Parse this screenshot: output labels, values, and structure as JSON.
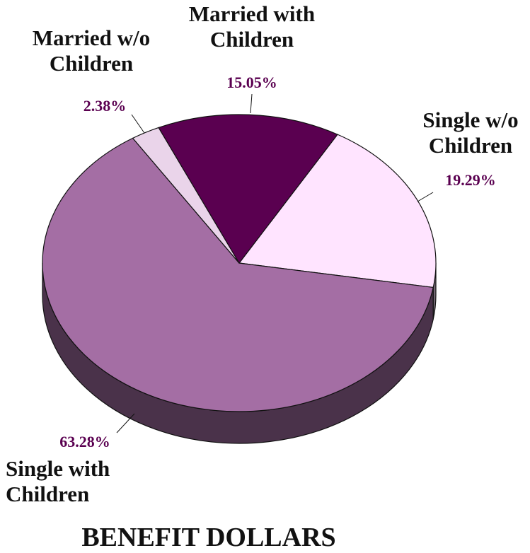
{
  "chart_data": {
    "type": "pie",
    "title": "BENEFIT DOLLARS",
    "categories": [
      "Single w/o Children",
      "Single with Children",
      "Married w/o Children",
      "Married with Children"
    ],
    "values": [
      19.29,
      63.28,
      2.38,
      15.05
    ],
    "value_labels": [
      "19.29%",
      "63.28%",
      "2.38%",
      "15.05%"
    ],
    "colors": [
      "#ffe4ff",
      "#a46ea4",
      "#ead4ea",
      "#5a0050"
    ]
  }
}
